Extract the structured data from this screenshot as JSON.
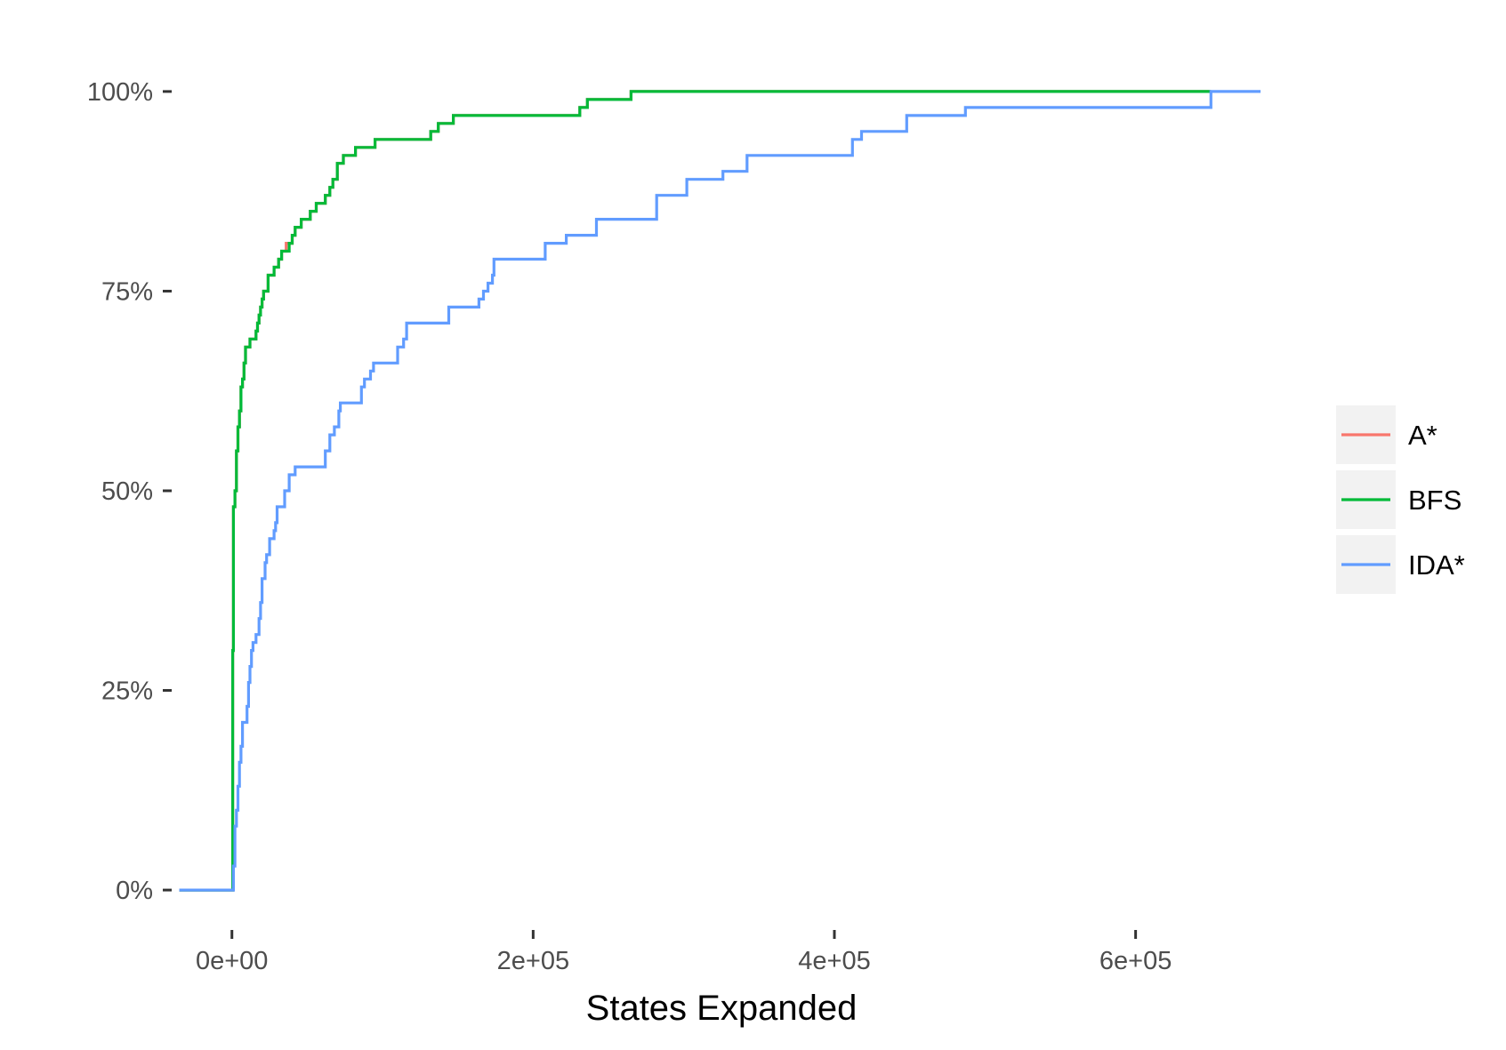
{
  "chart_data": {
    "type": "line",
    "step": true,
    "title": "",
    "xlabel": "States Expanded",
    "ylabel": "",
    "xlim": [
      -40000,
      690000
    ],
    "ylim": [
      -0.05,
      1.05
    ],
    "x_ticks": [
      {
        "value": 0,
        "label": "0e+00"
      },
      {
        "value": 200000,
        "label": "2e+05"
      },
      {
        "value": 400000,
        "label": "4e+05"
      },
      {
        "value": 600000,
        "label": "6e+05"
      }
    ],
    "y_ticks": [
      {
        "value": 0,
        "label": "0%"
      },
      {
        "value": 0.25,
        "label": "25%"
      },
      {
        "value": 0.5,
        "label": "50%"
      },
      {
        "value": 0.75,
        "label": "75%"
      },
      {
        "value": 1.0,
        "label": "100%"
      }
    ],
    "grid": false,
    "legend_position": "right",
    "series": [
      {
        "name": "A*",
        "color": "#F8766D",
        "points": [
          [
            -35000,
            0
          ],
          [
            0,
            0
          ],
          [
            500,
            0.3
          ],
          [
            1000,
            0.48
          ],
          [
            2000,
            0.5
          ],
          [
            3000,
            0.55
          ],
          [
            4000,
            0.58
          ],
          [
            5000,
            0.6
          ],
          [
            6000,
            0.63
          ],
          [
            7000,
            0.64
          ],
          [
            8000,
            0.66
          ],
          [
            9000,
            0.68
          ],
          [
            12000,
            0.69
          ],
          [
            16000,
            0.7
          ],
          [
            17000,
            0.71
          ],
          [
            18000,
            0.72
          ],
          [
            19000,
            0.73
          ],
          [
            20000,
            0.74
          ],
          [
            21000,
            0.75
          ],
          [
            24000,
            0.77
          ],
          [
            28000,
            0.78
          ],
          [
            31000,
            0.79
          ],
          [
            33000,
            0.8
          ],
          [
            36000,
            0.81
          ],
          [
            40000,
            0.82
          ],
          [
            42000,
            0.83
          ],
          [
            46000,
            0.84
          ],
          [
            52000,
            0.85
          ],
          [
            56000,
            0.86
          ],
          [
            62000,
            0.87
          ],
          [
            65000,
            0.88
          ],
          [
            67000,
            0.89
          ],
          [
            70000,
            0.91
          ],
          [
            74000,
            0.92
          ],
          [
            82000,
            0.93
          ],
          [
            95000,
            0.94
          ],
          [
            132000,
            0.95
          ],
          [
            137000,
            0.96
          ],
          [
            147000,
            0.97
          ],
          [
            231000,
            0.98
          ],
          [
            236000,
            0.99
          ],
          [
            265000,
            1.0
          ],
          [
            650000,
            1.0
          ]
        ]
      },
      {
        "name": "BFS",
        "color": "#00BA38",
        "points": [
          [
            -35000,
            0
          ],
          [
            0,
            0
          ],
          [
            500,
            0.3
          ],
          [
            1000,
            0.48
          ],
          [
            2000,
            0.5
          ],
          [
            3000,
            0.55
          ],
          [
            4000,
            0.58
          ],
          [
            5000,
            0.6
          ],
          [
            6000,
            0.63
          ],
          [
            7000,
            0.64
          ],
          [
            8000,
            0.66
          ],
          [
            9000,
            0.68
          ],
          [
            12000,
            0.69
          ],
          [
            16000,
            0.7
          ],
          [
            17000,
            0.71
          ],
          [
            18000,
            0.72
          ],
          [
            19000,
            0.73
          ],
          [
            20000,
            0.74
          ],
          [
            21000,
            0.75
          ],
          [
            24000,
            0.77
          ],
          [
            28000,
            0.78
          ],
          [
            31000,
            0.79
          ],
          [
            33000,
            0.8
          ],
          [
            38000,
            0.81
          ],
          [
            40000,
            0.82
          ],
          [
            42000,
            0.83
          ],
          [
            46000,
            0.84
          ],
          [
            52000,
            0.85
          ],
          [
            56000,
            0.86
          ],
          [
            62000,
            0.87
          ],
          [
            65000,
            0.88
          ],
          [
            67000,
            0.89
          ],
          [
            70000,
            0.91
          ],
          [
            74000,
            0.92
          ],
          [
            82000,
            0.93
          ],
          [
            95000,
            0.94
          ],
          [
            132000,
            0.95
          ],
          [
            137000,
            0.96
          ],
          [
            147000,
            0.97
          ],
          [
            231000,
            0.98
          ],
          [
            236000,
            0.99
          ],
          [
            265000,
            1.0
          ],
          [
            650000,
            1.0
          ]
        ]
      },
      {
        "name": "IDA*",
        "color": "#619CFF",
        "points": [
          [
            -35000,
            0
          ],
          [
            0,
            0
          ],
          [
            1000,
            0.03
          ],
          [
            2000,
            0.08
          ],
          [
            3000,
            0.1
          ],
          [
            4000,
            0.13
          ],
          [
            5000,
            0.16
          ],
          [
            6000,
            0.18
          ],
          [
            7000,
            0.21
          ],
          [
            10000,
            0.23
          ],
          [
            11000,
            0.26
          ],
          [
            12000,
            0.28
          ],
          [
            13000,
            0.3
          ],
          [
            14000,
            0.31
          ],
          [
            16000,
            0.32
          ],
          [
            18000,
            0.34
          ],
          [
            19000,
            0.36
          ],
          [
            20000,
            0.39
          ],
          [
            22000,
            0.41
          ],
          [
            23000,
            0.42
          ],
          [
            25000,
            0.44
          ],
          [
            28000,
            0.45
          ],
          [
            29000,
            0.46
          ],
          [
            30000,
            0.48
          ],
          [
            35000,
            0.5
          ],
          [
            38000,
            0.52
          ],
          [
            42000,
            0.53
          ],
          [
            62000,
            0.55
          ],
          [
            65000,
            0.57
          ],
          [
            68000,
            0.58
          ],
          [
            71000,
            0.6
          ],
          [
            72000,
            0.61
          ],
          [
            86000,
            0.63
          ],
          [
            88000,
            0.64
          ],
          [
            92000,
            0.65
          ],
          [
            94000,
            0.66
          ],
          [
            110000,
            0.68
          ],
          [
            114000,
            0.69
          ],
          [
            116000,
            0.71
          ],
          [
            144000,
            0.73
          ],
          [
            164000,
            0.74
          ],
          [
            167000,
            0.75
          ],
          [
            170000,
            0.76
          ],
          [
            173000,
            0.77
          ],
          [
            174000,
            0.79
          ],
          [
            208000,
            0.81
          ],
          [
            222000,
            0.82
          ],
          [
            242000,
            0.84
          ],
          [
            282000,
            0.87
          ],
          [
            302000,
            0.89
          ],
          [
            326000,
            0.9
          ],
          [
            342000,
            0.92
          ],
          [
            412000,
            0.94
          ],
          [
            418000,
            0.95
          ],
          [
            448000,
            0.97
          ],
          [
            487000,
            0.98
          ],
          [
            650000,
            1.0
          ],
          [
            683000,
            1.0
          ]
        ]
      }
    ]
  }
}
